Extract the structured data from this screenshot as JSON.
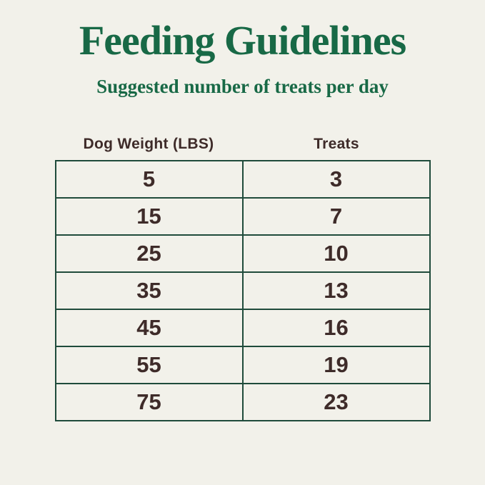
{
  "page": {
    "title": "Feeding Guidelines",
    "subtitle": "Suggested number of treats per day"
  },
  "colors": {
    "background": "#F2F1EA",
    "heading_green": "#186946",
    "table_border_green": "#1F4B3B",
    "text_brown": "#3E2B29"
  },
  "chart_data": {
    "type": "table",
    "title": "Feeding Guidelines",
    "subtitle": "Suggested number of treats per day",
    "columns": [
      "Dog Weight (LBS)",
      "Treats"
    ],
    "rows": [
      [
        5,
        3
      ],
      [
        15,
        7
      ],
      [
        25,
        10
      ],
      [
        35,
        13
      ],
      [
        45,
        16
      ],
      [
        55,
        19
      ],
      [
        75,
        23
      ]
    ],
    "layout_hints": {
      "grid": "on",
      "column_alignment": "center",
      "header_position": "above-table-outside-borders"
    }
  }
}
